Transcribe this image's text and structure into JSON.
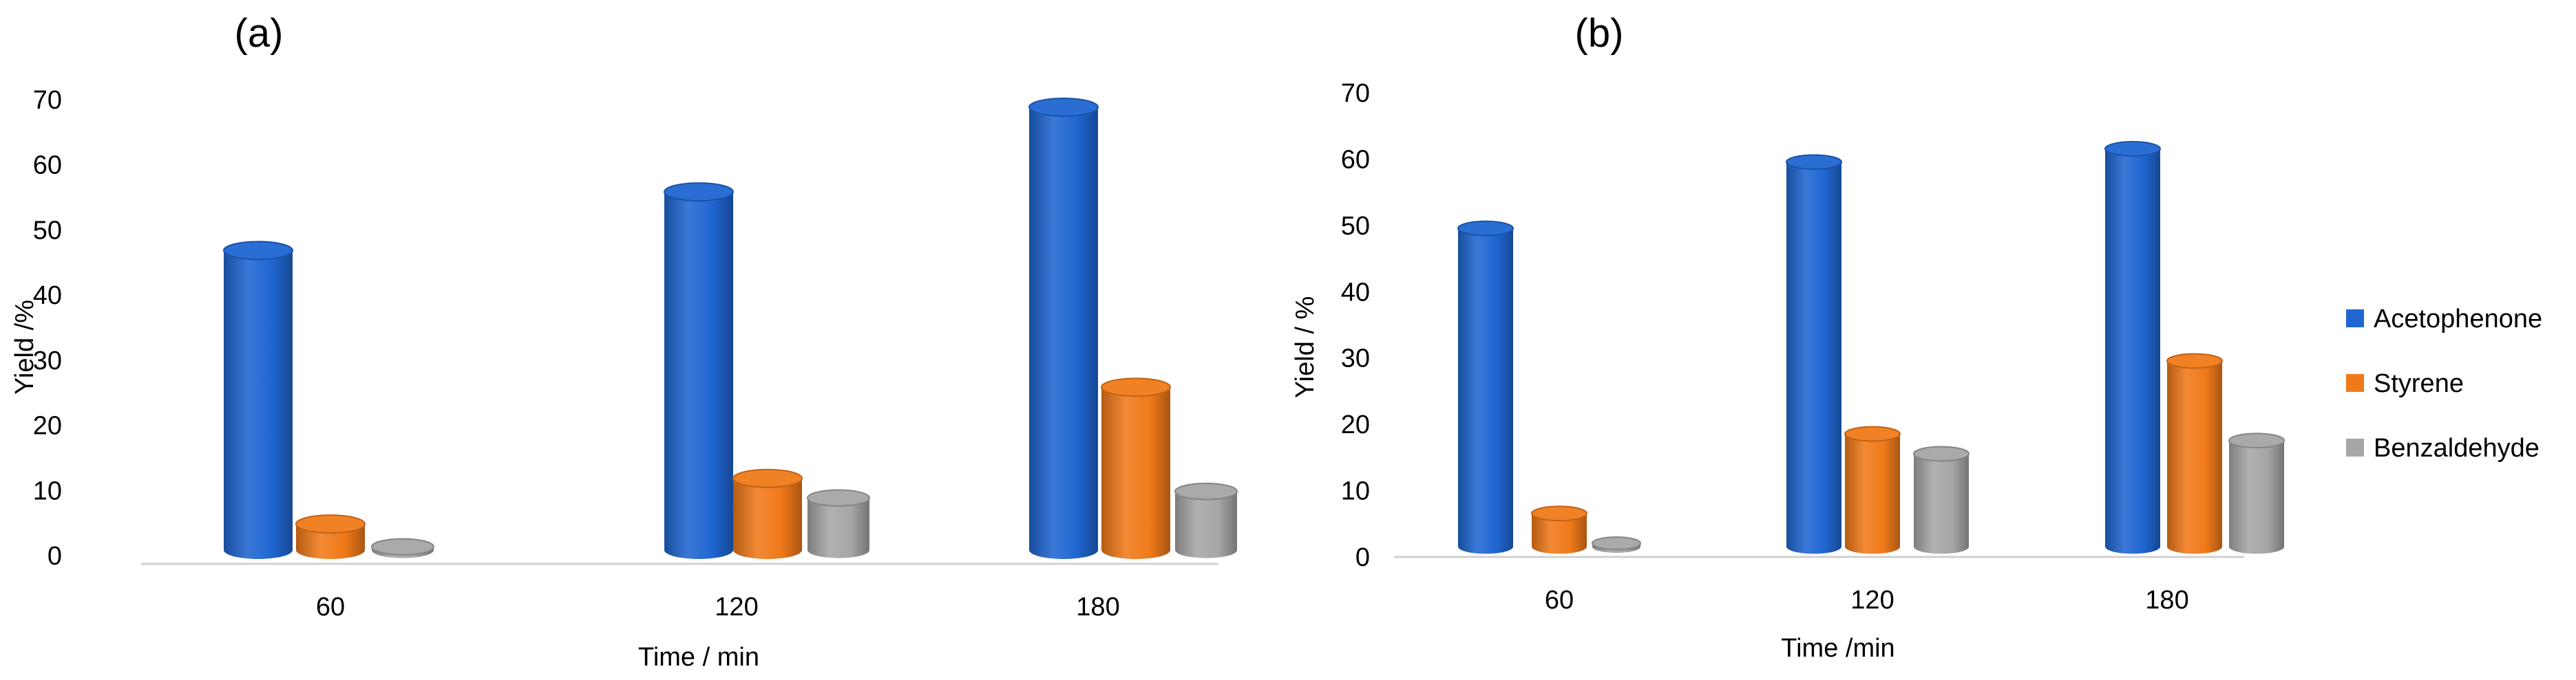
{
  "chart_data": [
    {
      "type": "bar",
      "panel_label": "(a)",
      "xlabel": "Time / min",
      "ylabel": "Yield /%",
      "categories": [
        "60",
        "120",
        "180"
      ],
      "ylim": [
        0,
        70
      ],
      "yticks": [
        0,
        10,
        20,
        30,
        40,
        50,
        60,
        70
      ],
      "grid": false,
      "series": [
        {
          "name": "Acetophenone",
          "values": [
            46,
            55,
            68
          ]
        },
        {
          "name": "Styrene",
          "values": [
            4,
            11,
            25
          ]
        },
        {
          "name": "Benzaldehyde",
          "values": [
            0.5,
            8,
            9
          ]
        }
      ]
    },
    {
      "type": "bar",
      "panel_label": "(b)",
      "xlabel": "Time /min",
      "ylabel": "Yield / %",
      "categories": [
        "60",
        "120",
        "180"
      ],
      "ylim": [
        0,
        70
      ],
      "yticks": [
        0,
        10,
        20,
        30,
        40,
        50,
        60,
        70
      ],
      "grid": false,
      "series": [
        {
          "name": "Acetophenone",
          "values": [
            48,
            58,
            60
          ]
        },
        {
          "name": "Styrene",
          "values": [
            5,
            17,
            28
          ]
        },
        {
          "name": "Benzaldehyde",
          "values": [
            0.5,
            14,
            16
          ]
        }
      ]
    }
  ],
  "legend": {
    "placement": "right",
    "items": [
      "Acetophenone",
      "Styrene",
      "Benzaldehyde"
    ]
  },
  "colors": {
    "Acetophenone": "#1f66d1",
    "Styrene": "#f07a1a",
    "Benzaldehyde": "#a6a6a6"
  }
}
